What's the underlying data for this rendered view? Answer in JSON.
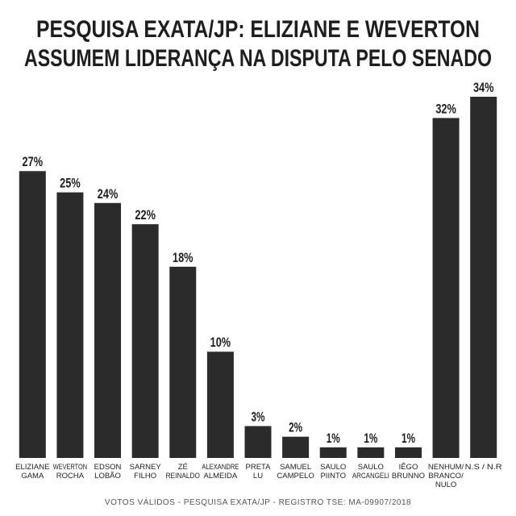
{
  "chart_data": {
    "type": "bar",
    "title": [
      "PESQUISA EXATA/JP: ELIZIANE E WEVERTON",
      "ASSUMEM LIDERANÇA NA DISPUTA PELO SENADO"
    ],
    "categories": [
      [
        "ELIZIANE",
        "GAMA"
      ],
      [
        "WEVERTON",
        "ROCHA"
      ],
      [
        "EDSON",
        "LOBÃO"
      ],
      [
        "SARNEY",
        "FILHO"
      ],
      [
        "ZÉ",
        "REINALDO"
      ],
      [
        "ALEXANDRE",
        "ALMEIDA"
      ],
      [
        "PRETA",
        "LU"
      ],
      [
        "SAMUEL",
        "CAMPELO"
      ],
      [
        "SAULO",
        "PIINTO"
      ],
      [
        "SAULO",
        "ARCANGELI"
      ],
      [
        "IÊGO",
        "BRUNNO"
      ],
      [
        "NENHUM/",
        "BRANCO/",
        "NULO"
      ],
      [
        "N.S / N.R"
      ]
    ],
    "values": [
      27,
      25,
      24,
      22,
      18,
      10,
      3,
      2,
      1,
      1,
      1,
      32,
      34
    ],
    "value_labels": [
      "27%",
      "25%",
      "24%",
      "22%",
      "18%",
      "10%",
      "3%",
      "2%",
      "1%",
      "1%",
      "1%",
      "32%",
      "34%"
    ],
    "color": "#2b2b2b",
    "source": "VOTOS VÁLIDOS - PESQUISA EXATA/JP - REGISTRO TSE: MA-09907/2018"
  }
}
